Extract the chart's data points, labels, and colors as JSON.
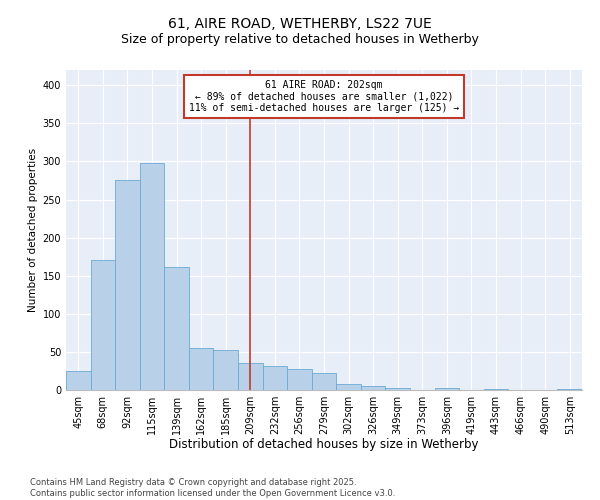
{
  "title": "61, AIRE ROAD, WETHERBY, LS22 7UE",
  "subtitle": "Size of property relative to detached houses in Wetherby",
  "xlabel": "Distribution of detached houses by size in Wetherby",
  "ylabel": "Number of detached properties",
  "categories": [
    "45sqm",
    "68sqm",
    "92sqm",
    "115sqm",
    "139sqm",
    "162sqm",
    "185sqm",
    "209sqm",
    "232sqm",
    "256sqm",
    "279sqm",
    "302sqm",
    "326sqm",
    "349sqm",
    "373sqm",
    "396sqm",
    "419sqm",
    "443sqm",
    "466sqm",
    "490sqm",
    "513sqm"
  ],
  "values": [
    25,
    170,
    275,
    298,
    162,
    55,
    52,
    35,
    32,
    28,
    22,
    8,
    5,
    3,
    0,
    3,
    0,
    1,
    0,
    0,
    1
  ],
  "bar_color": "#b8d0e8",
  "bar_edge_color": "#6aaad4",
  "vline_x": 7,
  "vline_color": "#c0392b",
  "annotation_text": "61 AIRE ROAD: 202sqm\n← 89% of detached houses are smaller (1,022)\n11% of semi-detached houses are larger (125) →",
  "annotation_box_color": "#ffffff",
  "annotation_box_edge": "#c0392b",
  "ylim": [
    0,
    420
  ],
  "yticks": [
    0,
    50,
    100,
    150,
    200,
    250,
    300,
    350,
    400
  ],
  "bg_color": "#e8eef8",
  "footnote": "Contains HM Land Registry data © Crown copyright and database right 2025.\nContains public sector information licensed under the Open Government Licence v3.0.",
  "title_fontsize": 10,
  "subtitle_fontsize": 9,
  "xlabel_fontsize": 8.5,
  "ylabel_fontsize": 7.5,
  "tick_fontsize": 7,
  "footnote_fontsize": 6,
  "annot_fontsize": 7
}
